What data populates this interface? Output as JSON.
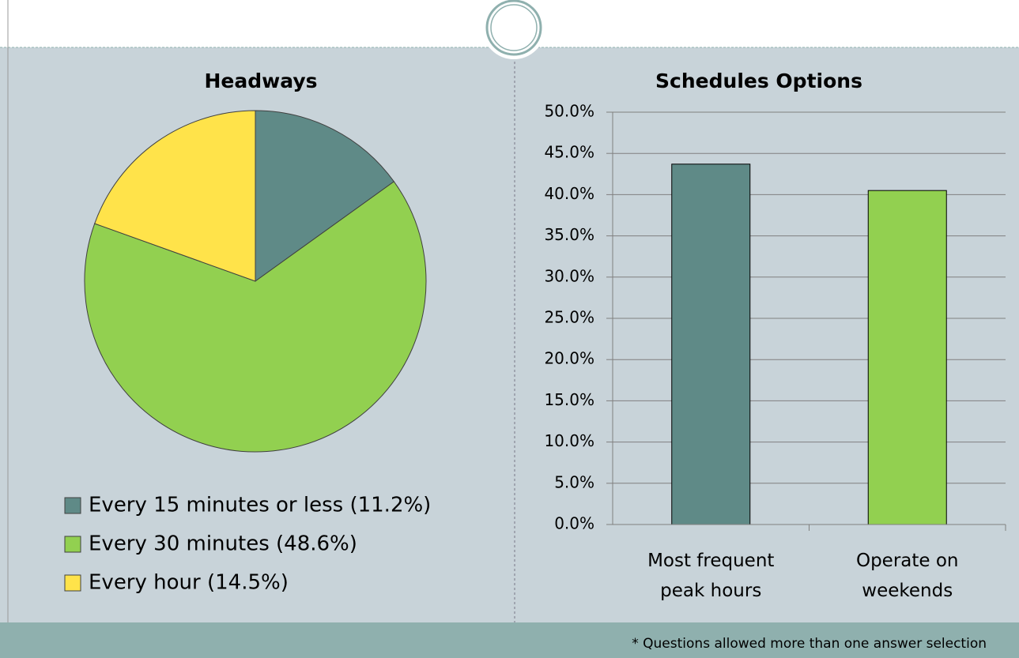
{
  "chart_data": [
    {
      "type": "pie",
      "title": "Headways",
      "categories": [
        "Every 15 minutes or less (11.2%)",
        "Every 30 minutes (48.6%)",
        "Every hour (14.5%)"
      ],
      "values": [
        11.2,
        48.6,
        14.5
      ],
      "colors": [
        "#5f8a87",
        "#92d050",
        "#ffe34a"
      ]
    },
    {
      "type": "bar",
      "title": "Schedules Options",
      "categories": [
        "Most frequent peak hours",
        "Operate on weekends"
      ],
      "values": [
        43.7,
        40.5
      ],
      "colors": [
        "#5f8a87",
        "#92d050"
      ],
      "ylim": [
        0,
        50
      ],
      "yticks": [
        {
          "value": 0,
          "label": "0.0%"
        },
        {
          "value": 5,
          "label": "5.0%"
        },
        {
          "value": 10,
          "label": "10.0%"
        },
        {
          "value": 15,
          "label": "15.0%"
        },
        {
          "value": 20,
          "label": "20.0%"
        },
        {
          "value": 25,
          "label": "25.0%"
        },
        {
          "value": 30,
          "label": "30.0%"
        },
        {
          "value": 35,
          "label": "35.0%"
        },
        {
          "value": 40,
          "label": "40.0%"
        },
        {
          "value": 45,
          "label": "45.0%"
        },
        {
          "value": 50,
          "label": "50.0%"
        }
      ],
      "grid": true
    }
  ],
  "footnote": "* Questions allowed more than one answer selection"
}
